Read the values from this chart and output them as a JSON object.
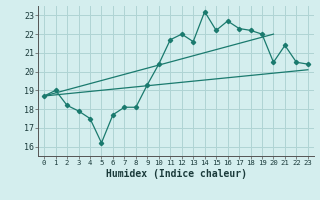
{
  "xlabel": "Humidex (Indice chaleur)",
  "ylabel": "",
  "xlim": [
    -0.5,
    23.5
  ],
  "ylim": [
    15.5,
    23.5
  ],
  "xticks": [
    0,
    1,
    2,
    3,
    4,
    5,
    6,
    7,
    8,
    9,
    10,
    11,
    12,
    13,
    14,
    15,
    16,
    17,
    18,
    19,
    20,
    21,
    22,
    23
  ],
  "yticks": [
    16,
    17,
    18,
    19,
    20,
    21,
    22,
    23
  ],
  "bg_color": "#d4eeee",
  "grid_color": "#afd4d4",
  "line_color": "#1a7a6e",
  "main_x": [
    0,
    1,
    2,
    3,
    4,
    5,
    6,
    7,
    8,
    9,
    10,
    11,
    12,
    13,
    14,
    15,
    16,
    17,
    18,
    19,
    20,
    21,
    22,
    23
  ],
  "main_y": [
    18.7,
    19.0,
    18.2,
    17.9,
    17.5,
    16.2,
    17.7,
    18.1,
    18.1,
    19.3,
    20.4,
    21.7,
    22.0,
    21.6,
    23.2,
    22.2,
    22.7,
    22.3,
    22.2,
    22.0,
    20.5,
    21.4,
    20.5,
    20.4
  ],
  "trend1_x": [
    0,
    23
  ],
  "trend1_y": [
    18.7,
    20.1
  ],
  "trend2_x": [
    0,
    20
  ],
  "trend2_y": [
    18.7,
    22.0
  ],
  "xtick_fontsize": 5.2,
  "ytick_fontsize": 6.0,
  "xlabel_fontsize": 7.0
}
